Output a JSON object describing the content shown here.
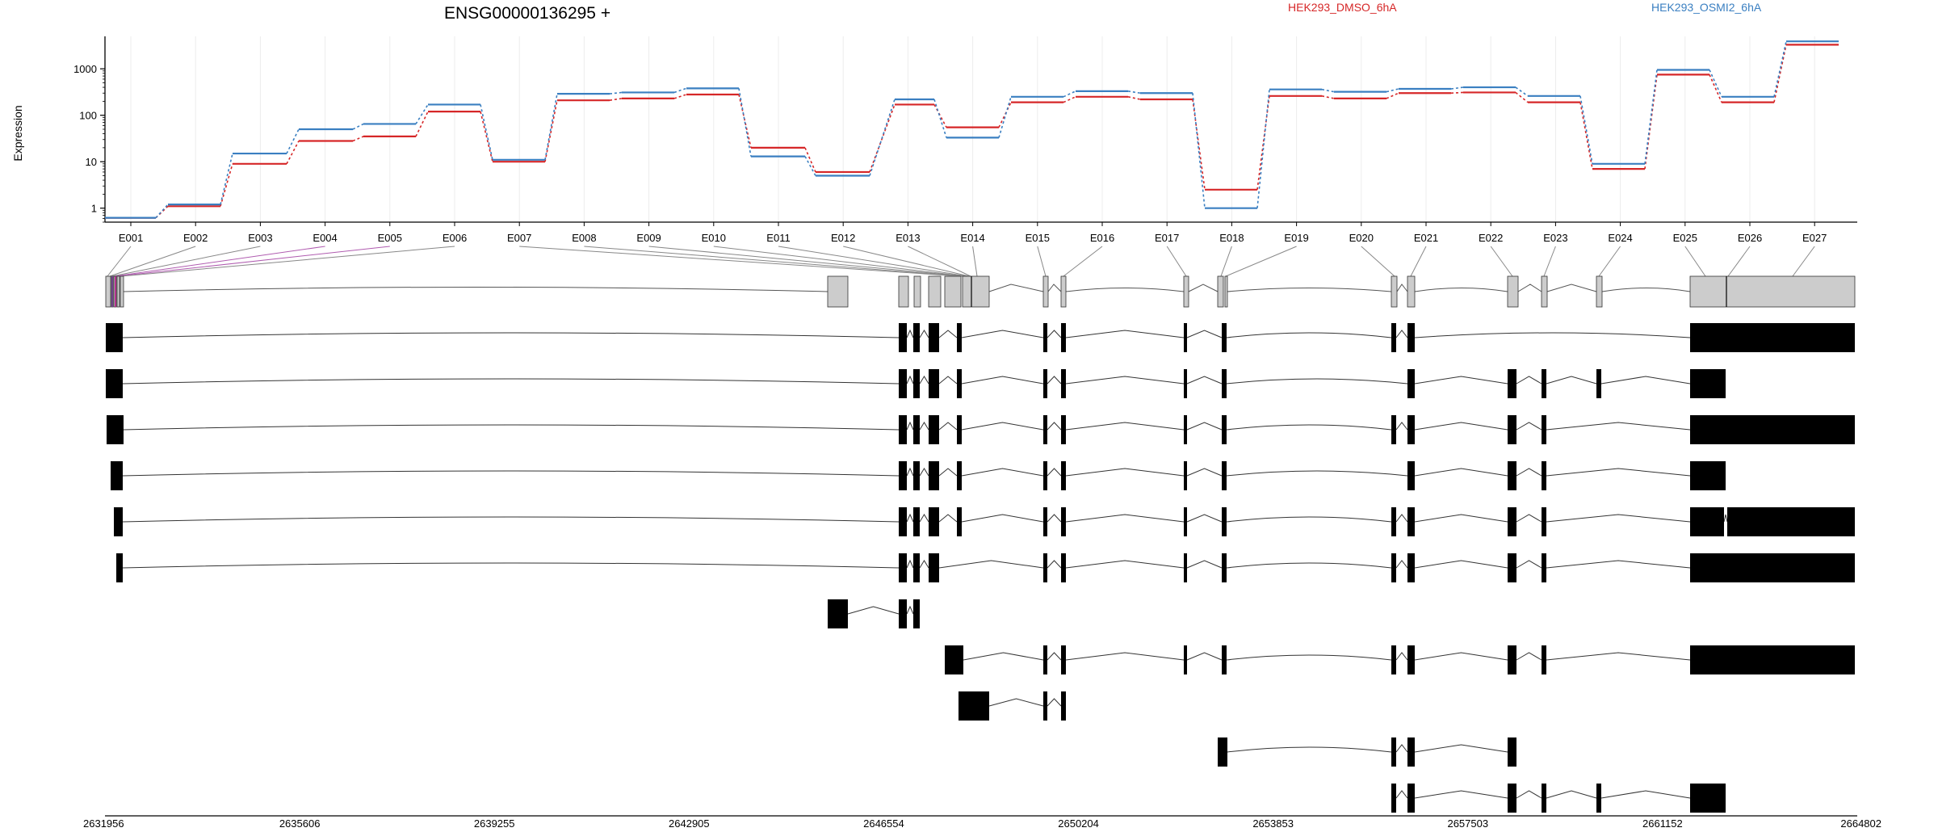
{
  "chart_data": {
    "type": "line",
    "title": "ENSG00000136295 +",
    "ylabel": "Expression",
    "yscale": "log",
    "ylim": [
      0.5,
      5000
    ],
    "y_ticks": [
      1,
      10,
      100,
      1000
    ],
    "y_tick_labels": [
      "1",
      "10",
      "100",
      "1000"
    ],
    "grid": "vertical",
    "legend_position": "top-right",
    "categories": [
      "E001",
      "E002",
      "E003",
      "E004",
      "E005",
      "E006",
      "E007",
      "E008",
      "E009",
      "E010",
      "E011",
      "E012",
      "E013",
      "E014",
      "E015",
      "E016",
      "E017",
      "E018",
      "E019",
      "E020",
      "E021",
      "E022",
      "E023",
      "E024",
      "E025",
      "E026",
      "E027"
    ],
    "series": [
      {
        "name": "HEK293_DMSO_6hA",
        "color": "#d62728",
        "values": [
          0.62,
          1.1,
          9,
          28,
          35,
          120,
          10,
          210,
          230,
          280,
          20,
          6,
          170,
          55,
          190,
          250,
          220,
          2.5,
          260,
          230,
          300,
          310,
          190,
          7,
          750,
          190,
          3300
        ]
      },
      {
        "name": "HEK293_OSMI2_6hA",
        "color": "#3a7fc1",
        "values": [
          0.62,
          1.2,
          15,
          50,
          65,
          170,
          11,
          290,
          310,
          380,
          13,
          5,
          220,
          33,
          250,
          330,
          300,
          1.0,
          360,
          320,
          370,
          400,
          260,
          9,
          950,
          250,
          3900
        ]
      }
    ],
    "genomic_coordinates": {
      "ticks": [
        2631956,
        2635606,
        2639255,
        2642905,
        2646554,
        2650204,
        2653853,
        2657503,
        2661152,
        2664802
      ],
      "tick_labels": [
        "2631956",
        "2635606",
        "2639255",
        "2642905",
        "2646554",
        "2650204",
        "2653853",
        "2657503",
        "2661152",
        "2664802"
      ]
    },
    "transcripts_count": 12
  }
}
